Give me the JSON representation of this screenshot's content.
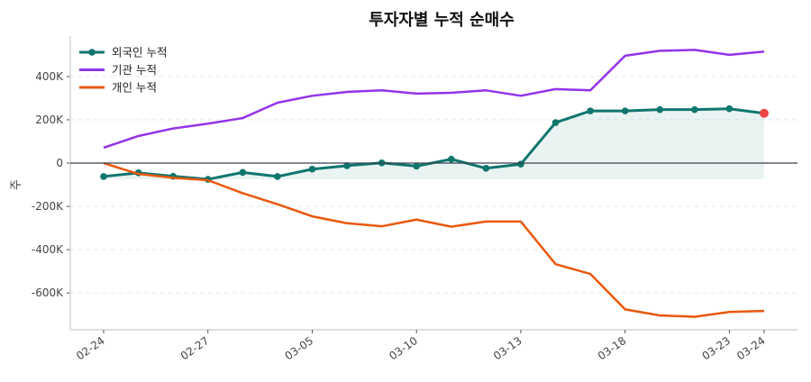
{
  "chart_data": {
    "type": "line",
    "title": "투자자별 누적 순매수",
    "xlabel": "",
    "ylabel": "주",
    "x_ticks": [
      {
        "index": 0,
        "label": "02-24"
      },
      {
        "index": 3,
        "label": "02-27"
      },
      {
        "index": 6,
        "label": "03-05"
      },
      {
        "index": 9,
        "label": "03-10"
      },
      {
        "index": 12,
        "label": "03-13"
      },
      {
        "index": 15,
        "label": "03-18"
      },
      {
        "index": 18,
        "label": "03-23"
      },
      {
        "index": 19,
        "label": "03-24"
      }
    ],
    "y_ticks": [
      {
        "value": 400000,
        "label": "400K"
      },
      {
        "value": 200000,
        "label": "200K"
      },
      {
        "value": 0,
        "label": "0"
      },
      {
        "value": -200000,
        "label": "-200K"
      },
      {
        "value": -400000,
        "label": "-400K"
      },
      {
        "value": -600000,
        "label": "-600K"
      }
    ],
    "ylim": [
      -770000,
      587000
    ],
    "grid": "horizontal dashed",
    "legend_position": "top-left",
    "series": [
      {
        "name": "외국인 누적",
        "color": "#0f766e",
        "markers": true,
        "fill": true,
        "last_marker_color": "#ef4444",
        "values": [
          -62000,
          -45000,
          -61000,
          -75000,
          -43000,
          -62000,
          -28000,
          -12000,
          1000,
          -14000,
          18000,
          -24000,
          -5000,
          187000,
          241000,
          241000,
          247000,
          247000,
          251000,
          230000
        ]
      },
      {
        "name": "기관 누적",
        "color": "#9333ea",
        "markers": false,
        "values": [
          71000,
          125000,
          160000,
          182000,
          208000,
          279000,
          311000,
          329000,
          336000,
          321000,
          325000,
          336000,
          311000,
          342000,
          336000,
          496000,
          519000,
          523000,
          500000,
          515000
        ]
      },
      {
        "name": "개인 누적",
        "color": "#ea580c",
        "markers": false,
        "values": [
          0,
          -50000,
          -68000,
          -79000,
          -139000,
          -190000,
          -246000,
          -278000,
          -292000,
          -261000,
          -294000,
          -270000,
          -270000,
          -467000,
          -512000,
          -676000,
          -704000,
          -710000,
          -688000,
          -683000
        ]
      }
    ]
  }
}
